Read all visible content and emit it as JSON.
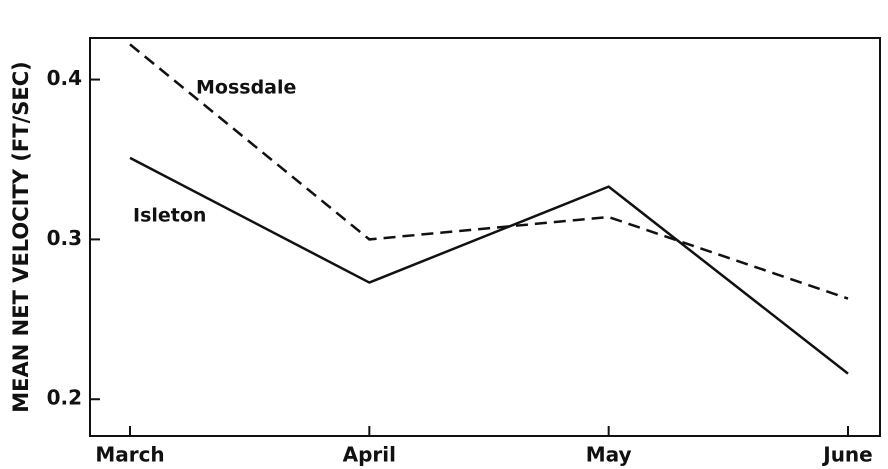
{
  "chart_data": {
    "type": "line",
    "y_label": "MEAN NET VELOCITY (FT/SEC)",
    "categories": [
      "March",
      "April",
      "May",
      "June"
    ],
    "series": [
      {
        "name": "Mossdale",
        "color": "#111111",
        "style": "dashed",
        "values": [
          0.422,
          0.3,
          0.314,
          0.263
        ]
      },
      {
        "name": "Isleton",
        "color": "#111111",
        "style": "solid",
        "values": [
          0.351,
          0.273,
          0.333,
          0.216
        ]
      }
    ],
    "ylim": [
      0.177,
      0.426
    ],
    "yticks": [
      0.2,
      0.3,
      0.4
    ],
    "grid": false
  }
}
